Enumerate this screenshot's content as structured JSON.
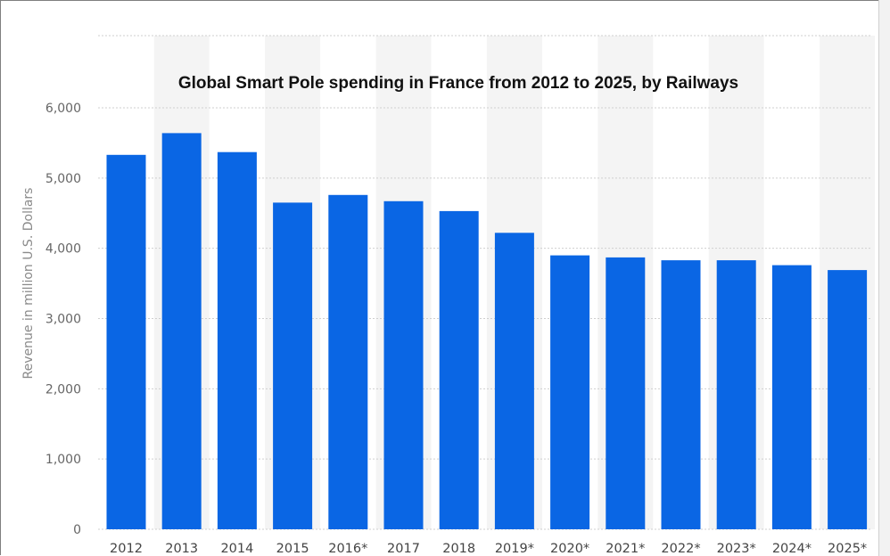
{
  "chart_data": {
    "type": "bar",
    "title": "Global Smart Pole spending in France from 2012 to 2025, by Railways",
    "xlabel": "",
    "ylabel": "Revenue in million U.S. Dollars",
    "categories": [
      "2012",
      "2013",
      "2014",
      "2015",
      "2016*",
      "2017",
      "2018",
      "2019*",
      "2020*",
      "2021*",
      "2022*",
      "2023*",
      "2024*",
      "2025*"
    ],
    "values": [
      5330,
      5640,
      5370,
      4650,
      4760,
      4670,
      4530,
      4220,
      3900,
      3870,
      3830,
      3830,
      3760,
      3690
    ],
    "ylim": [
      0,
      6000
    ],
    "yticks": [
      0,
      1000,
      2000,
      3000,
      4000,
      5000,
      6000
    ],
    "ytick_labels": [
      "0",
      "1,000",
      "2,000",
      "3,000",
      "4,000",
      "5,000",
      "6,000"
    ],
    "grid": true,
    "legend": "none",
    "bar_color": "#0a66e4",
    "alt_band_color": "#f4f4f4",
    "grid_color": "#cfcfcf"
  }
}
